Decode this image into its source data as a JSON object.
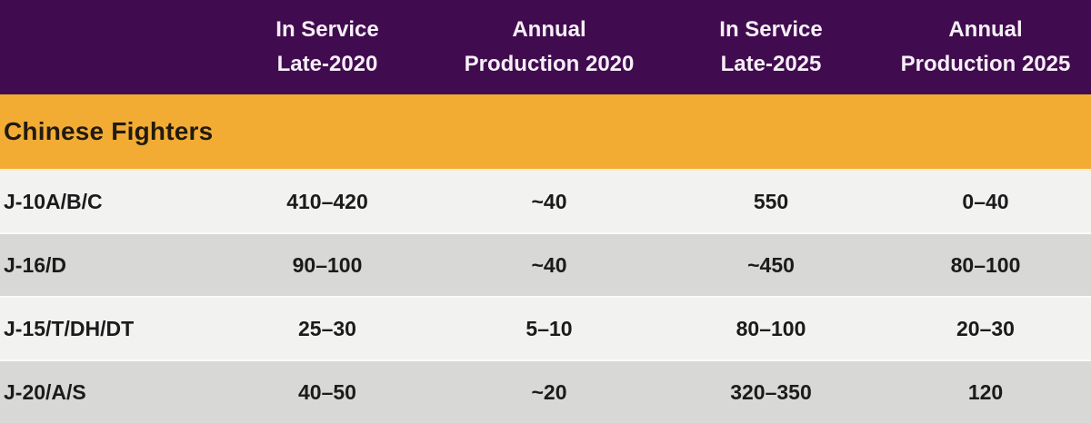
{
  "chart_data": {
    "type": "table",
    "section_header": "Chinese Fighters",
    "header_columns": [
      {
        "line1": "In Service",
        "line2": "Late-2020"
      },
      {
        "line1": "Annual",
        "line2": "Production 2020"
      },
      {
        "line1": "In Service",
        "line2": "Late-2025"
      },
      {
        "line1": "Annual",
        "line2": "Production 2025"
      }
    ],
    "rows": [
      {
        "label": "J-10A/B/C",
        "values": [
          "410–420",
          "~40",
          "550",
          "0–40"
        ]
      },
      {
        "label": "J-16/D",
        "values": [
          "90–100",
          "~40",
          "~450",
          "80–100"
        ]
      },
      {
        "label": "J-15/T/DH/DT",
        "values": [
          "25–30",
          "5–10",
          "80–100",
          "20–30"
        ]
      },
      {
        "label": "J-20/A/S",
        "values": [
          "40–50",
          "~20",
          "320–350",
          "120"
        ]
      }
    ]
  },
  "colors": {
    "header_bg": "#410c4f",
    "header_text": "#f6f0f6",
    "section_bg": "#f2ac34",
    "row_light": "#f2f2f1",
    "row_dark": "#d8d8d6",
    "body_text": "#1b1b1b"
  }
}
